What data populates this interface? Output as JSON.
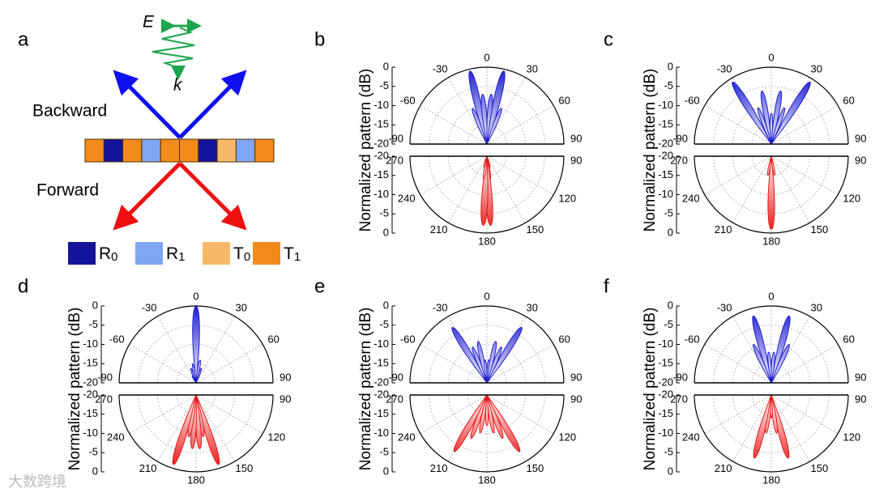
{
  "panel_a": {
    "label": "a",
    "E": "E",
    "k": "k",
    "backward": "Backward",
    "forward": "Forward",
    "legend": [
      {
        "letter": "R",
        "sub": "0",
        "color": "#14149a"
      },
      {
        "letter": "R",
        "sub": "1",
        "color": "#7ea6f2"
      },
      {
        "letter": "T",
        "sub": "0",
        "color": "#f8b86c"
      },
      {
        "letter": "T",
        "sub": "1",
        "color": "#f28a1c"
      }
    ]
  },
  "watermark": "大数跨境",
  "chart_data": [
    {
      "type": "polar",
      "label": "b",
      "ylabel": "Normalized pattern (dB)",
      "rlim": [
        -20,
        0
      ],
      "upper": {
        "yticks": [
          0,
          -5,
          -10,
          -15,
          -20
        ],
        "angle_ticks": [
          -90,
          -60,
          -30,
          0,
          30,
          60,
          90
        ],
        "color": "#1f1fd0",
        "angles": [
          -22,
          -13,
          -5,
          5,
          13,
          22
        ],
        "values": [
          -10,
          -0.5,
          -7,
          -7,
          -0.5,
          -10
        ]
      },
      "lower": {
        "yticks": [
          -20,
          -15,
          -10,
          -5,
          0
        ],
        "angle_ticks": [
          270,
          240,
          210,
          180,
          150,
          120,
          90
        ],
        "color": "#e81818",
        "angles": [
          165,
          172,
          177,
          183,
          188,
          195
        ],
        "values": [
          -17,
          -14,
          -2,
          -2,
          -14,
          -17
        ]
      }
    },
    {
      "type": "polar",
      "label": "c",
      "ylabel": "Normalized pattern (dB)",
      "rlim": [
        -20,
        0
      ],
      "upper": {
        "yticks": [
          0,
          -5,
          -10,
          -15,
          -20
        ],
        "angle_ticks": [
          -90,
          -60,
          -30,
          0,
          30,
          60,
          90
        ],
        "color": "#1f1fd0",
        "angles": [
          -32,
          -20,
          -10,
          0,
          10,
          20,
          32
        ],
        "values": [
          -1,
          -10,
          -6,
          -12,
          -6,
          -10,
          -1
        ]
      },
      "lower": {
        "yticks": [
          -20,
          -15,
          -10,
          -5,
          0
        ],
        "angle_ticks": [
          270,
          240,
          210,
          180,
          150,
          120,
          90
        ],
        "color": "#e81818",
        "angles": [
          170,
          180,
          190
        ],
        "values": [
          -15,
          -1,
          -15
        ]
      }
    },
    {
      "type": "polar",
      "label": "d",
      "ylabel": "Normalized pattern (dB)",
      "rlim": [
        -20,
        0
      ],
      "upper": {
        "yticks": [
          0,
          -5,
          -10,
          -15,
          -20
        ],
        "angle_ticks": [
          -90,
          -60,
          -30,
          0,
          30,
          60,
          90
        ],
        "color": "#1f1fd0",
        "angles": [
          -30,
          -20,
          -10,
          0,
          10,
          20
        ],
        "values": [
          -18,
          -16,
          -15,
          0,
          -14,
          -16
        ]
      },
      "lower": {
        "yticks": [
          -20,
          -15,
          -10,
          -5,
          0
        ],
        "angle_ticks": [
          270,
          240,
          210,
          180,
          150,
          120,
          90
        ],
        "color": "#e81818",
        "angles": [
          162,
          170,
          176,
          184,
          190,
          198
        ],
        "values": [
          -1,
          -9,
          -6,
          -6,
          -9,
          -1
        ]
      }
    },
    {
      "type": "polar",
      "label": "e",
      "ylabel": "Normalized pattern (dB)",
      "rlim": [
        -20,
        0
      ],
      "upper": {
        "yticks": [
          0,
          -5,
          -10,
          -15,
          -20
        ],
        "angle_ticks": [
          -90,
          -60,
          -30,
          0,
          30,
          60,
          90
        ],
        "color": "#1f1fd0",
        "angles": [
          -32,
          -22,
          -12,
          -5,
          5,
          12,
          22,
          32
        ],
        "values": [
          -3,
          -10,
          -9,
          -14,
          -14,
          -9,
          -10,
          -3
        ]
      },
      "lower": {
        "yticks": [
          -20,
          -15,
          -10,
          -5,
          0
        ],
        "angle_ticks": [
          270,
          240,
          210,
          180,
          150,
          120,
          90
        ],
        "color": "#e81818",
        "angles": [
          150,
          160,
          170,
          180,
          190,
          200,
          210
        ],
        "values": [
          -3,
          -8,
          -10,
          -12,
          -10,
          -8,
          -3
        ]
      }
    },
    {
      "type": "polar",
      "label": "f",
      "ylabel": "Normalized pattern (dB)",
      "rlim": [
        -20,
        0
      ],
      "upper": {
        "yticks": [
          0,
          -5,
          -10,
          -15,
          -20
        ],
        "angle_ticks": [
          -90,
          -60,
          -30,
          0,
          30,
          60,
          90
        ],
        "color": "#1f1fd0",
        "angles": [
          -25,
          -15,
          -5,
          5,
          15,
          25
        ],
        "values": [
          -9,
          -2,
          -12,
          -12,
          -2,
          -9
        ]
      },
      "lower": {
        "yticks": [
          -20,
          -15,
          -10,
          -5,
          0
        ],
        "angle_ticks": [
          270,
          240,
          210,
          180,
          150,
          120,
          90
        ],
        "color": "#e81818",
        "angles": [
          165,
          172,
          180,
          188,
          195
        ],
        "values": [
          -3,
          -10,
          -14,
          -10,
          -3
        ]
      }
    }
  ]
}
